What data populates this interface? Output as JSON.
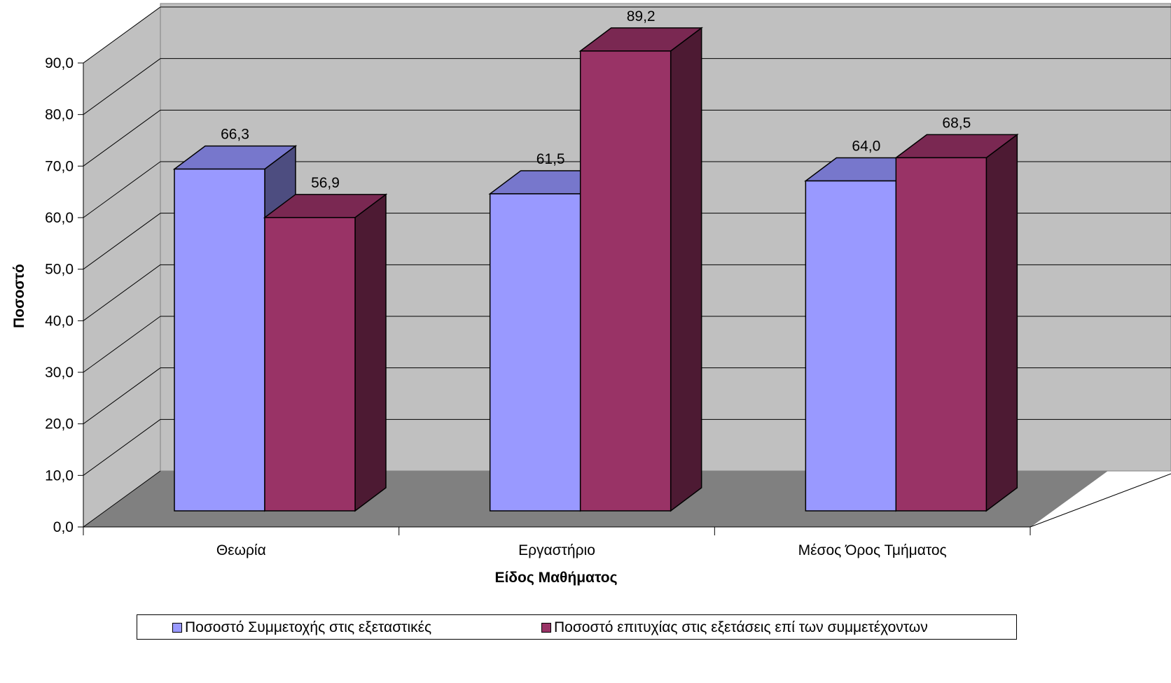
{
  "chart_data": {
    "type": "bar",
    "style": "3d-clustered-column",
    "categories": [
      "Θεωρία",
      "Εργαστήριο",
      "Μέσος Όρος Τμήματος"
    ],
    "series": [
      {
        "name": "Ποσοστό Συμμετοχής στις εξεταστικές",
        "values": [
          66.3,
          61.5,
          64.0
        ],
        "labels": [
          "66,3",
          "61,5",
          "64,0"
        ],
        "color": "#9999ff"
      },
      {
        "name": "Ποσοστό επιτυχίας στις εξετάσεις επί των συμμετέχοντων",
        "values": [
          56.9,
          89.2,
          68.5
        ],
        "labels": [
          "56,9",
          "89,2",
          "68,5"
        ],
        "color": "#993366"
      }
    ],
    "xlabel": "Είδος Μαθήματος",
    "ylabel": "Ποσοστό",
    "ylim": [
      0,
      90
    ],
    "yticks": [
      "0,0",
      "10,0",
      "20,0",
      "30,0",
      "40,0",
      "50,0",
      "60,0",
      "70,0",
      "80,0",
      "90,0"
    ],
    "grid": true,
    "legend_position": "bottom",
    "colors": {
      "wall": "#c0c0c0",
      "floor": "#808080"
    }
  }
}
